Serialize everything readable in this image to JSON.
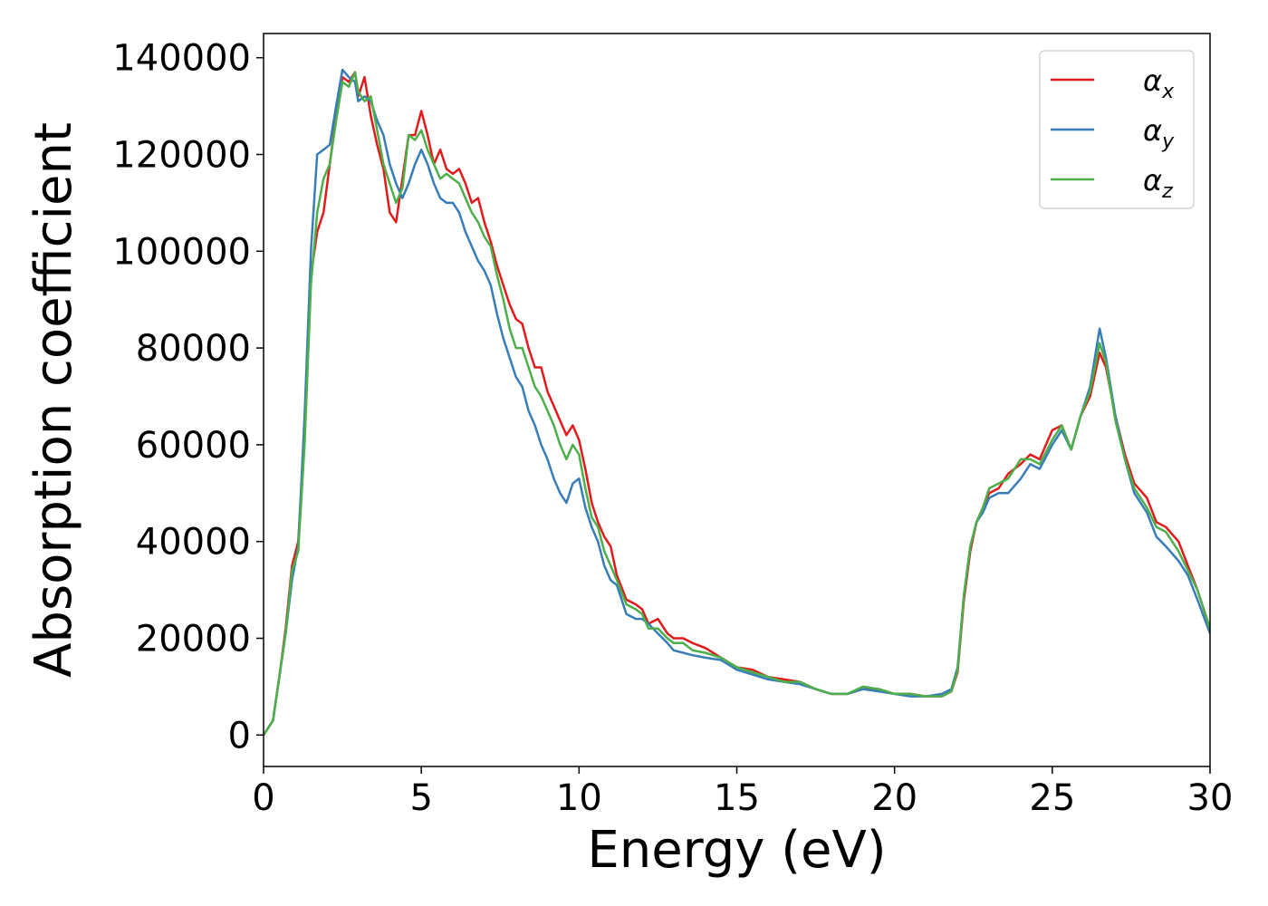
{
  "chart_data": {
    "type": "line",
    "title": "",
    "xlabel": "Energy (eV)",
    "ylabel": "Absorption coefficient",
    "xlim": [
      0,
      30
    ],
    "ylim": [
      -6500,
      145000
    ],
    "xticks": [
      0,
      5,
      10,
      15,
      20,
      25,
      30
    ],
    "yticks": [
      0,
      20000,
      40000,
      60000,
      80000,
      100000,
      120000,
      140000
    ],
    "grid": false,
    "legend_placement": "top-right",
    "series": [
      {
        "name": "αx",
        "legend_base": "α",
        "legend_sub": "x",
        "color": "#e31a1c",
        "x": [
          0,
          0.3,
          0.5,
          0.7,
          0.9,
          1.1,
          1.3,
          1.5,
          1.7,
          1.9,
          2.1,
          2.3,
          2.5,
          2.7,
          2.9,
          3.0,
          3.2,
          3.4,
          3.6,
          3.8,
          4.0,
          4.2,
          4.4,
          4.6,
          4.8,
          5.0,
          5.2,
          5.4,
          5.6,
          5.8,
          6.0,
          6.2,
          6.4,
          6.6,
          6.8,
          7.0,
          7.2,
          7.4,
          7.6,
          7.8,
          8.0,
          8.2,
          8.4,
          8.6,
          8.8,
          9.0,
          9.2,
          9.4,
          9.6,
          9.8,
          10.0,
          10.2,
          10.4,
          10.6,
          10.8,
          11.0,
          11.2,
          11.5,
          11.8,
          12.0,
          12.2,
          12.5,
          12.8,
          13.0,
          13.3,
          13.6,
          14.0,
          14.5,
          15.0,
          15.5,
          16.0,
          16.5,
          17.0,
          17.5,
          18.0,
          18.5,
          19.0,
          19.5,
          20.0,
          20.5,
          21.0,
          21.5,
          21.8,
          22.0,
          22.2,
          22.4,
          22.6,
          22.8,
          23.0,
          23.3,
          23.6,
          24.0,
          24.3,
          24.6,
          25.0,
          25.3,
          25.6,
          25.9,
          26.2,
          26.5,
          26.7,
          27.0,
          27.3,
          27.6,
          28.0,
          28.3,
          28.6,
          29.0,
          29.3,
          29.6,
          30.0
        ],
        "y": [
          0,
          3000,
          12000,
          22000,
          35000,
          40000,
          62000,
          95000,
          104000,
          108000,
          118000,
          128000,
          136000,
          135000,
          137000,
          132000,
          136000,
          128000,
          122000,
          117000,
          108000,
          106000,
          115000,
          124000,
          124000,
          129000,
          124000,
          118000,
          121000,
          117000,
          116000,
          117000,
          114000,
          110000,
          111000,
          106000,
          102000,
          97000,
          93000,
          89000,
          86000,
          85000,
          80000,
          76000,
          76000,
          71000,
          68000,
          65000,
          62000,
          64000,
          61000,
          55000,
          48000,
          44000,
          41000,
          39000,
          33000,
          28000,
          27000,
          26000,
          23000,
          24000,
          21000,
          20000,
          20000,
          19000,
          18000,
          16000,
          14000,
          13500,
          12000,
          11500,
          11000,
          9500,
          8500,
          8500,
          9500,
          9500,
          8500,
          8500,
          8000,
          8000,
          9000,
          13000,
          28000,
          38000,
          44000,
          47000,
          50000,
          51000,
          54000,
          56000,
          58000,
          57000,
          63000,
          64000,
          59000,
          66000,
          70000,
          79000,
          76000,
          66000,
          58000,
          52000,
          49000,
          44000,
          43000,
          40000,
          35000,
          30000,
          22000
        ]
      },
      {
        "name": "αy",
        "legend_base": "α",
        "legend_sub": "y",
        "color": "#377eb8",
        "x": [
          0,
          0.3,
          0.5,
          0.7,
          0.9,
          1.1,
          1.3,
          1.5,
          1.7,
          1.9,
          2.1,
          2.3,
          2.5,
          2.7,
          2.9,
          3.0,
          3.2,
          3.4,
          3.6,
          3.8,
          4.0,
          4.2,
          4.4,
          4.6,
          4.8,
          5.0,
          5.2,
          5.4,
          5.6,
          5.8,
          6.0,
          6.2,
          6.4,
          6.6,
          6.8,
          7.0,
          7.2,
          7.4,
          7.6,
          7.8,
          8.0,
          8.2,
          8.4,
          8.6,
          8.8,
          9.0,
          9.2,
          9.4,
          9.6,
          9.8,
          10.0,
          10.2,
          10.4,
          10.6,
          10.8,
          11.0,
          11.2,
          11.5,
          11.8,
          12.0,
          12.2,
          12.5,
          12.8,
          13.0,
          13.3,
          13.6,
          14.0,
          14.5,
          15.0,
          15.5,
          16.0,
          16.5,
          17.0,
          17.5,
          18.0,
          18.5,
          19.0,
          19.5,
          20.0,
          20.5,
          21.0,
          21.5,
          21.8,
          22.0,
          22.2,
          22.4,
          22.6,
          22.8,
          23.0,
          23.3,
          23.6,
          24.0,
          24.3,
          24.6,
          25.0,
          25.3,
          25.6,
          25.9,
          26.2,
          26.5,
          26.7,
          27.0,
          27.3,
          27.6,
          28.0,
          28.3,
          28.6,
          29.0,
          29.3,
          29.6,
          30.0
        ],
        "y": [
          0,
          3000,
          12000,
          21000,
          32000,
          39000,
          66000,
          100000,
          120000,
          121000,
          122000,
          130000,
          137500,
          136000,
          135000,
          131000,
          132000,
          131000,
          127000,
          124000,
          118000,
          114000,
          111000,
          114000,
          118000,
          121000,
          118000,
          114000,
          111000,
          110000,
          110000,
          108000,
          104000,
          101000,
          98000,
          96000,
          93000,
          87000,
          82000,
          78000,
          74000,
          72000,
          67000,
          64000,
          60000,
          57000,
          53000,
          50000,
          48000,
          52000,
          53000,
          47000,
          43000,
          40000,
          35000,
          32000,
          31000,
          25000,
          24000,
          24000,
          23000,
          21000,
          19000,
          17500,
          17000,
          16500,
          16000,
          15500,
          13500,
          12500,
          11500,
          11000,
          10500,
          9500,
          8500,
          8500,
          9500,
          9000,
          8500,
          8000,
          8000,
          8500,
          9500,
          14000,
          29000,
          39000,
          44000,
          46000,
          49000,
          50000,
          50000,
          53000,
          56000,
          55000,
          60000,
          63000,
          59000,
          66000,
          72000,
          84000,
          78000,
          66000,
          57000,
          50000,
          46000,
          41000,
          39000,
          36000,
          33000,
          28000,
          21000
        ]
      },
      {
        "name": "αz",
        "legend_base": "α",
        "legend_sub": "z",
        "color": "#4daf4a",
        "x": [
          0,
          0.3,
          0.5,
          0.7,
          0.9,
          1.1,
          1.3,
          1.5,
          1.7,
          1.9,
          2.1,
          2.3,
          2.5,
          2.7,
          2.9,
          3.0,
          3.2,
          3.4,
          3.6,
          3.8,
          4.0,
          4.2,
          4.4,
          4.6,
          4.8,
          5.0,
          5.2,
          5.4,
          5.6,
          5.8,
          6.0,
          6.2,
          6.4,
          6.6,
          6.8,
          7.0,
          7.2,
          7.4,
          7.6,
          7.8,
          8.0,
          8.2,
          8.4,
          8.6,
          8.8,
          9.0,
          9.2,
          9.4,
          9.6,
          9.8,
          10.0,
          10.2,
          10.4,
          10.6,
          10.8,
          11.0,
          11.2,
          11.5,
          11.8,
          12.0,
          12.2,
          12.5,
          12.8,
          13.0,
          13.3,
          13.6,
          14.0,
          14.5,
          15.0,
          15.5,
          16.0,
          16.5,
          17.0,
          17.5,
          18.0,
          18.5,
          19.0,
          19.5,
          20.0,
          20.5,
          21.0,
          21.5,
          21.8,
          22.0,
          22.2,
          22.4,
          22.6,
          22.8,
          23.0,
          23.3,
          23.6,
          24.0,
          24.3,
          24.6,
          25.0,
          25.3,
          25.6,
          25.9,
          26.2,
          26.5,
          26.7,
          27.0,
          27.3,
          27.6,
          28.0,
          28.3,
          28.6,
          29.0,
          29.3,
          29.6,
          30.0
        ],
        "y": [
          0,
          3000,
          12000,
          21000,
          34000,
          38000,
          60000,
          93000,
          108000,
          115000,
          118000,
          127000,
          135000,
          134000,
          137000,
          133000,
          131000,
          132000,
          125000,
          118000,
          114000,
          110000,
          113000,
          124000,
          123000,
          125000,
          121000,
          118000,
          115000,
          116000,
          115000,
          114000,
          111000,
          108000,
          106000,
          103000,
          101000,
          95000,
          90000,
          84000,
          80000,
          80000,
          76000,
          72000,
          70000,
          67000,
          64000,
          60000,
          57000,
          60000,
          58000,
          51000,
          45000,
          43000,
          38000,
          35000,
          32000,
          27000,
          26000,
          25000,
          22000,
          22000,
          20000,
          19000,
          19000,
          17500,
          17000,
          16000,
          14000,
          13000,
          12000,
          11000,
          11000,
          9500,
          8500,
          8500,
          10000,
          9500,
          8500,
          8500,
          8000,
          8000,
          9000,
          13500,
          29000,
          39000,
          44000,
          47000,
          51000,
          52000,
          53000,
          57000,
          57000,
          56000,
          61000,
          64000,
          59000,
          66000,
          71000,
          81000,
          77000,
          65000,
          57000,
          51000,
          47000,
          43000,
          42000,
          38000,
          34000,
          30000,
          22000
        ]
      }
    ]
  }
}
